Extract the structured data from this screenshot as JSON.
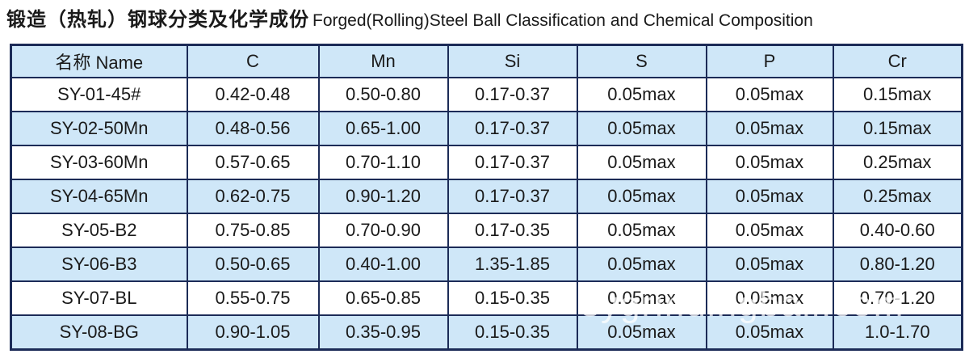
{
  "header": {
    "title_cn": "锻造（热轧）钢球分类及化学成份",
    "title_en": "Forged(Rolling)Steel Ball Classification and Chemical Composition"
  },
  "table": {
    "columns": [
      "名称 Name",
      "C",
      "Mn",
      "Si",
      "S",
      "P",
      "Cr"
    ],
    "rows": [
      [
        "SY-01-45#",
        "0.42-0.48",
        "0.50-0.80",
        "0.17-0.37",
        "0.05max",
        "0.05max",
        "0.15max"
      ],
      [
        "SY-02-50Mn",
        "0.48-0.56",
        "0.65-1.00",
        "0.17-0.37",
        "0.05max",
        "0.05max",
        "0.15max"
      ],
      [
        "SY-03-60Mn",
        "0.57-0.65",
        "0.70-1.10",
        "0.17-0.37",
        "0.05max",
        "0.05max",
        "0.25max"
      ],
      [
        "SY-04-65Mn",
        "0.62-0.75",
        "0.90-1.20",
        "0.17-0.37",
        "0.05max",
        "0.05max",
        "0.25max"
      ],
      [
        "SY-05-B2",
        "0.75-0.85",
        "0.70-0.90",
        "0.17-0.35",
        "0.05max",
        "0.05max",
        "0.40-0.60"
      ],
      [
        "SY-06-B3",
        "0.50-0.65",
        "0.40-1.00",
        "1.35-1.85",
        "0.05max",
        "0.05max",
        "0.80-1.20"
      ],
      [
        "SY-07-BL",
        "0.55-0.75",
        "0.65-0.85",
        "0.15-0.35",
        "0.05max",
        "0.05max",
        "0.70-1.20"
      ],
      [
        "SY-08-BG",
        "0.90-1.05",
        "0.35-0.95",
        "0.15-0.35",
        "0.05max",
        "0.05max",
        "1.0-1.70"
      ]
    ]
  },
  "watermark": "sygrindingball.com"
}
